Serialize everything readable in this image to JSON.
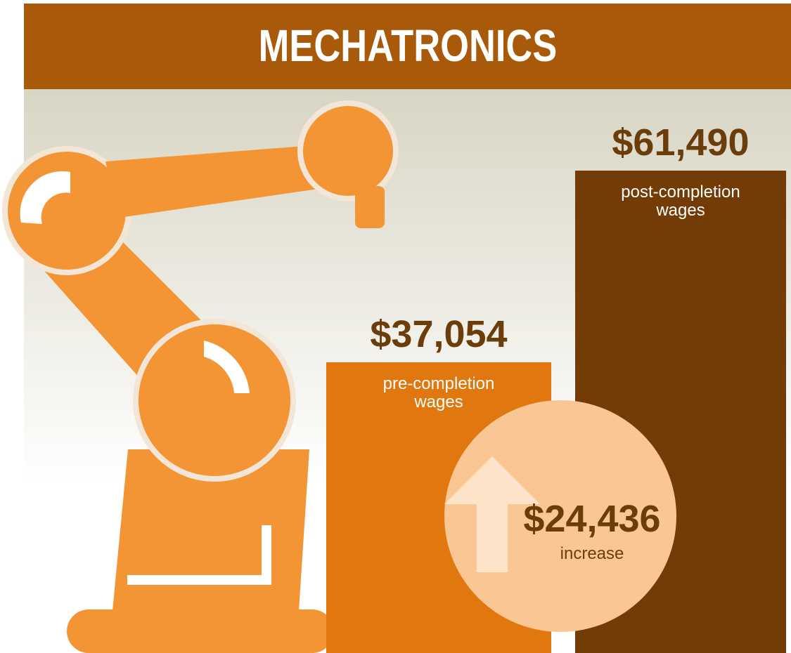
{
  "chart_data": {
    "type": "bar",
    "title": "MECHATRONICS",
    "categories": [
      "pre-completion\nwages",
      "post-completion\nwages"
    ],
    "values": [
      37054,
      61490
    ],
    "value_labels": [
      "$37,054",
      "$61,490"
    ],
    "colors": [
      "#e0780f",
      "#733c06"
    ],
    "annotation": {
      "value": 24436,
      "value_label": "$24,436",
      "text": "increase"
    }
  }
}
